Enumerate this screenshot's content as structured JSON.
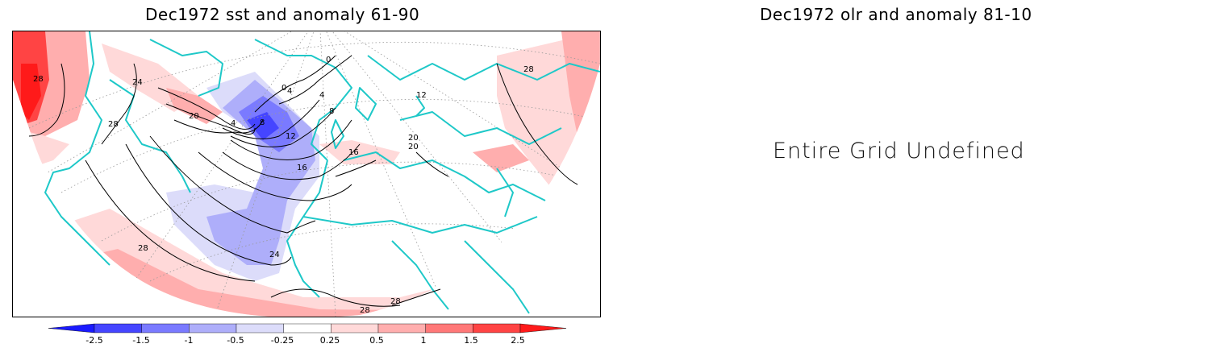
{
  "panels": {
    "left": {
      "title": "Dec1972 sst and anomaly 61-90"
    },
    "right": {
      "title": "Dec1972 olr and anomaly 81-10",
      "message": "Entire Grid Undefined"
    }
  },
  "colorbar": {
    "labels": [
      "-2.5",
      "-1.5",
      "-1",
      "-0.5",
      "-0.25",
      "0.25",
      "0.5",
      "1",
      "1.5",
      "2.5"
    ],
    "colors": [
      "#1a1aff",
      "#4545ff",
      "#7a7aff",
      "#aeaefa",
      "#dcdcfa",
      "#ffffff",
      "#ffd9d9",
      "#ffaeae",
      "#ff7878",
      "#ff4444",
      "#ff1a1a"
    ]
  },
  "map": {
    "coastline_color": "#1ec8c8",
    "contour_labels": [
      "28",
      "24",
      "28",
      "20",
      "4",
      "0",
      "4",
      "8",
      "12",
      "16",
      "20",
      "24",
      "28",
      "28",
      "28",
      "0",
      "4",
      "8",
      "12",
      "16",
      "20",
      "28"
    ]
  }
}
